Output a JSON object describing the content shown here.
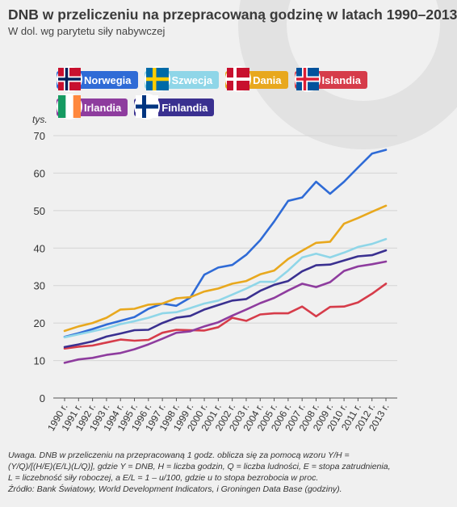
{
  "title": "DNB w przeliczeniu na przepracowaną godzinę w latach 1990–2013",
  "subtitle": "W dol. wg parytetu siły nabywczej",
  "note": {
    "line1": "Uwaga. DNB w przeliczeniu na przepracowaną 1 godz. oblicza się za pomocą wzoru Y/H =",
    "line2": "(Y/Q)/[(H/E)(E/L)(L/Q)], gdzie Y = DNB, H = liczba godzin, Q = liczba ludności, E = stopa zatrudnienia,",
    "line3": "L = liczebność siły roboczej, a E/L = 1 – u/100, gdzie u to stopa bezrobocia w proc.",
    "line4": "Źródło: Bank Światowy, World Development Indicators, i Groningen Data Base (godziny)."
  },
  "chart_data": {
    "type": "line",
    "title": "DNB w przeliczeniu na przepracowaną godzinę w latach 1990–2013",
    "ylabel": "tys.",
    "ylim": [
      0,
      70
    ],
    "yticks": [
      0,
      10,
      20,
      30,
      40,
      50,
      60,
      70
    ],
    "grid": true,
    "legend_position": "top-left",
    "x": [
      "1990 r.",
      "1991 r.",
      "1992 r.",
      "1993 r.",
      "1994 r.",
      "1995 r.",
      "1996 r.",
      "1997 r.",
      "1998 r.",
      "1999 r.",
      "2000 r.",
      "2001 r.",
      "2002 r.",
      "2003 r.",
      "2004 r.",
      "2005 r.",
      "2006 r.",
      "2007 r.",
      "2008 r.",
      "2009 r.",
      "2010 r.",
      "2011 r.",
      "2012 r.",
      "2013 r."
    ],
    "series": [
      {
        "name": "Norwegia",
        "color": "#2f6bd6",
        "flag": "norway-flag",
        "values": [
          16.3,
          17.3,
          18.4,
          19.6,
          20.6,
          21.6,
          23.8,
          25.2,
          24.6,
          26.8,
          32.9,
          34.8,
          35.5,
          38.2,
          42.1,
          47.1,
          52.6,
          53.5,
          57.7,
          54.5,
          57.7,
          61.5,
          65.2,
          66.2
        ]
      },
      {
        "name": "Szwecja",
        "color": "#8fd6e8",
        "flag": "sweden-flag",
        "values": [
          16.2,
          17.0,
          17.8,
          18.6,
          19.7,
          20.5,
          21.4,
          22.6,
          22.9,
          24.0,
          25.2,
          26.0,
          27.6,
          29.2,
          31.0,
          31.0,
          34.0,
          37.5,
          38.5,
          37.5,
          38.8,
          40.3,
          41.1,
          42.4
        ]
      },
      {
        "name": "Dania",
        "color": "#e8a81e",
        "flag": "denmark-flag",
        "values": [
          17.9,
          19.1,
          20.0,
          21.4,
          23.6,
          23.8,
          24.9,
          25.2,
          26.6,
          26.9,
          28.4,
          29.2,
          30.5,
          31.2,
          33.0,
          34.0,
          37.1,
          39.3,
          41.4,
          41.7,
          46.5,
          48.0,
          49.7,
          51.3
        ]
      },
      {
        "name": "Islandia",
        "color": "#d63c4a",
        "flag": "iceland-flag",
        "values": [
          13.2,
          13.7,
          14.0,
          14.8,
          15.6,
          15.3,
          15.5,
          17.4,
          18.2,
          18.1,
          18.0,
          18.9,
          21.4,
          20.6,
          22.3,
          22.6,
          22.6,
          24.4,
          21.8,
          24.3,
          24.4,
          25.5,
          27.8,
          30.5
        ]
      },
      {
        "name": "Irlandia",
        "color": "#8e3c9e",
        "flag": "ireland-flag",
        "values": [
          9.4,
          10.3,
          10.7,
          11.5,
          12.0,
          13.0,
          14.3,
          15.8,
          17.4,
          17.8,
          19.1,
          20.2,
          22.0,
          23.6,
          25.3,
          26.7,
          28.7,
          30.5,
          29.6,
          30.9,
          33.9,
          35.1,
          35.7,
          36.4
        ]
      },
      {
        "name": "Finlandia",
        "color": "#3a3090",
        "flag": "finland-flag",
        "values": [
          13.6,
          14.3,
          15.1,
          16.4,
          17.2,
          18.1,
          18.2,
          20.0,
          21.4,
          21.9,
          23.6,
          24.8,
          26.0,
          26.4,
          28.6,
          30.2,
          31.2,
          33.8,
          35.4,
          35.6,
          36.7,
          37.8,
          38.1,
          39.4
        ]
      }
    ]
  }
}
